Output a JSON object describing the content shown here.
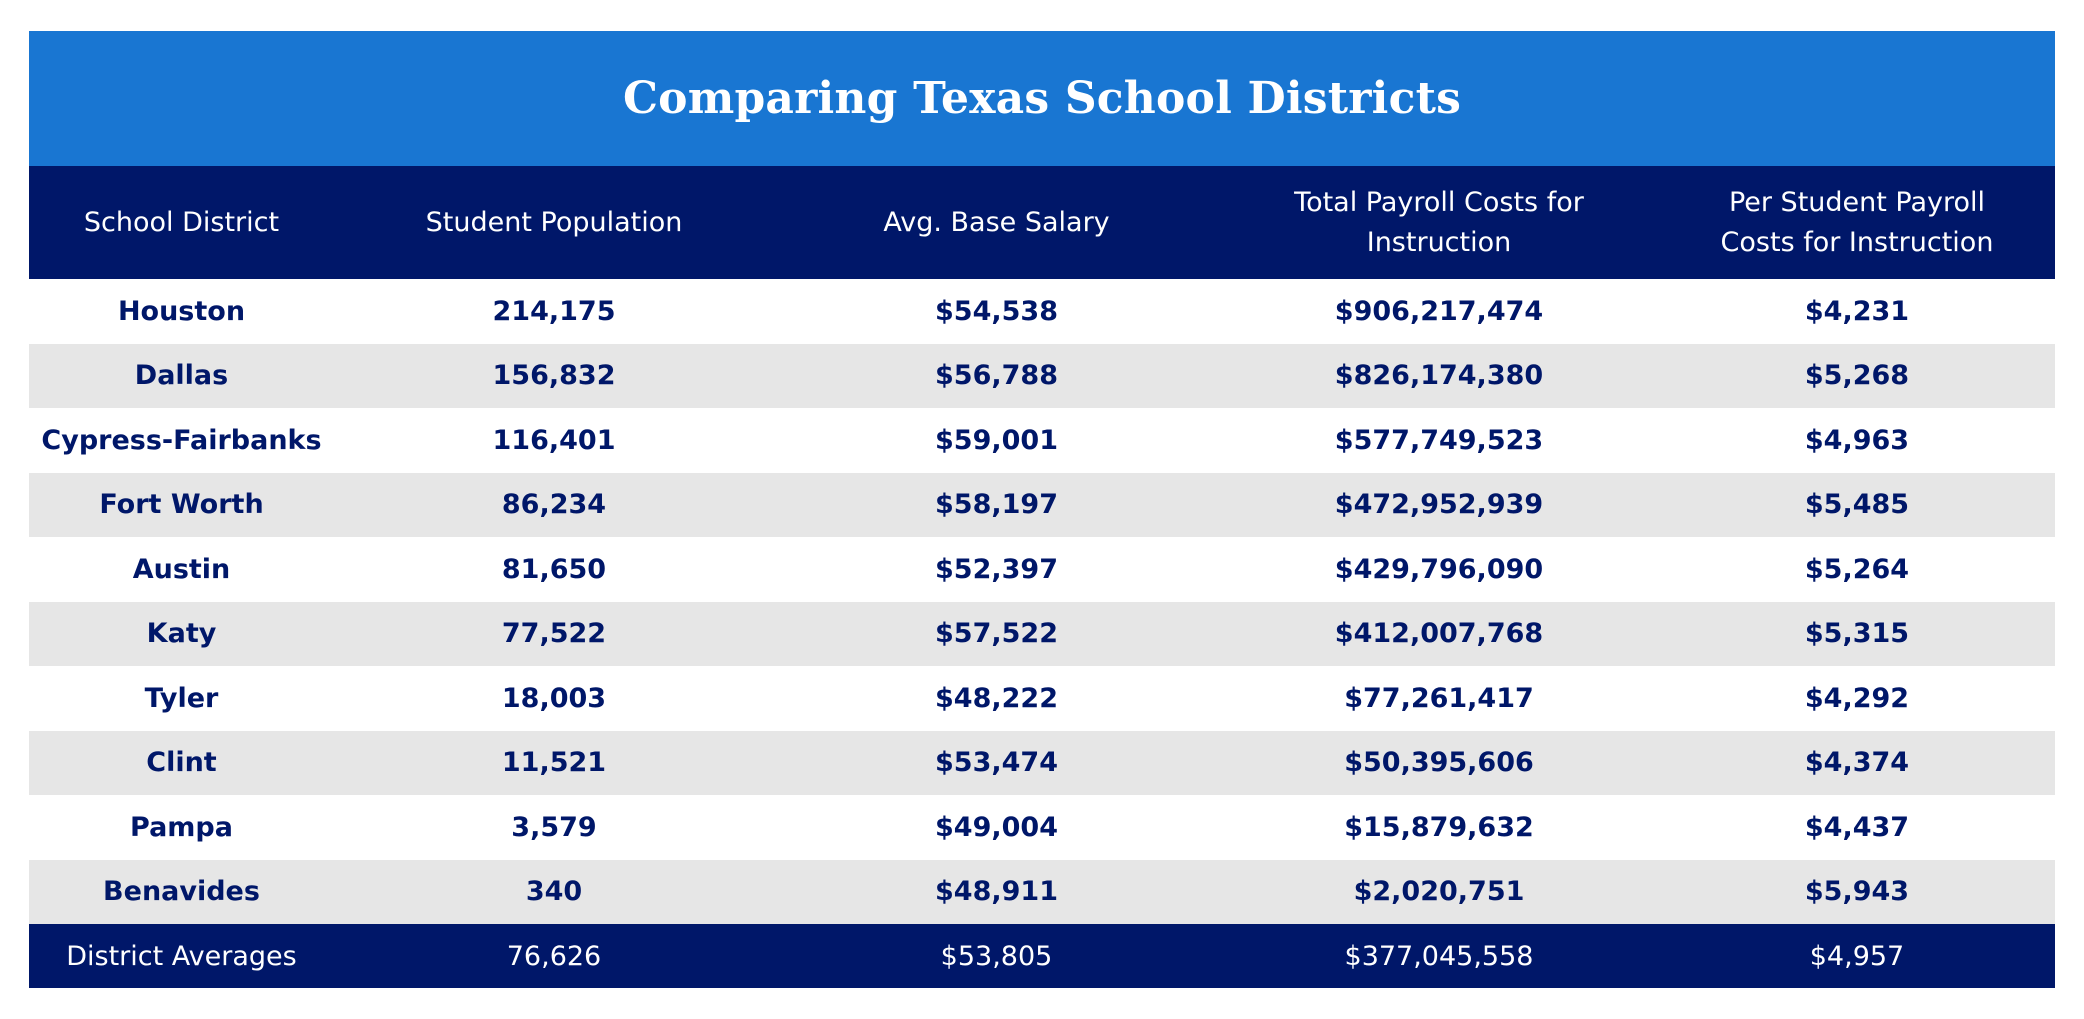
{
  "colors": {
    "title_bar": "#1976d2",
    "header_bg": "#001769",
    "row_alt": "#e6e6e6",
    "body_text": "#001769",
    "header_text": "#ffffff"
  },
  "chart_data": {
    "type": "table",
    "title": "Comparing Texas School Districts",
    "columns": [
      [
        "School District"
      ],
      [
        "Student Population"
      ],
      [
        "Avg. Base Salary"
      ],
      [
        "Total Payroll Costs for",
        "Instruction"
      ],
      [
        "Per Student Payroll",
        "Costs for Instruction"
      ]
    ],
    "rows": [
      [
        "Houston",
        "214,175",
        "$54,538",
        "$906,217,474",
        "$4,231"
      ],
      [
        "Dallas",
        "156,832",
        "$56,788",
        "$826,174,380",
        "$5,268"
      ],
      [
        "Cypress-Fairbanks",
        "116,401",
        "$59,001",
        "$577,749,523",
        "$4,963"
      ],
      [
        "Fort Worth",
        "86,234",
        "$58,197",
        "$472,952,939",
        "$5,485"
      ],
      [
        "Austin",
        "81,650",
        "$52,397",
        "$429,796,090",
        "$5,264"
      ],
      [
        "Katy",
        "77,522",
        "$57,522",
        "$412,007,768",
        "$5,315"
      ],
      [
        "Tyler",
        "18,003",
        "$48,222",
        "$77,261,417",
        "$4,292"
      ],
      [
        "Clint",
        "11,521",
        "$53,474",
        "$50,395,606",
        "$4,374"
      ],
      [
        "Pampa",
        "3,579",
        "$49,004",
        "$15,879,632",
        "$4,437"
      ],
      [
        "Benavides",
        "340",
        "$48,911",
        "$2,020,751",
        "$5,943"
      ]
    ],
    "footer": [
      "District Averages",
      "76,626",
      "$53,805",
      "$377,045,558",
      "$4,957"
    ]
  }
}
